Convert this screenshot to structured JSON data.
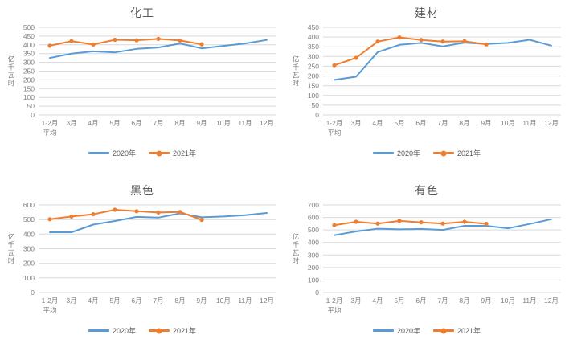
{
  "page": {
    "background": "#FFFFFF"
  },
  "colors": {
    "grid": "#D9D9D9",
    "axis_text": "#7F7F7F",
    "title_text": "#595959",
    "series_2020": "#5B9BD5",
    "series_2021": "#ED7D31"
  },
  "chart_data": [
    {
      "type": "line",
      "title": "化工",
      "ylabel": "亿千瓦时",
      "categories": [
        "1-2月\n平均",
        "3月",
        "4月",
        "5月",
        "6月",
        "7月",
        "8月",
        "9月",
        "10月",
        "11月",
        "12月"
      ],
      "ylim": [
        0,
        500
      ],
      "ytick_step": 50,
      "grid": true,
      "legend_position": "bottom",
      "series": [
        {
          "name": "2020年",
          "color": "#5B9BD5",
          "marker": false,
          "values": [
            325,
            350,
            363,
            357,
            377,
            385,
            408,
            380,
            394,
            408,
            428
          ]
        },
        {
          "name": "2021年",
          "color": "#ED7D31",
          "marker": true,
          "values": [
            395,
            421,
            402,
            429,
            426,
            434,
            425,
            403
          ]
        }
      ]
    },
    {
      "type": "line",
      "title": "建材",
      "ylabel": "亿千瓦时",
      "categories": [
        "1-2月\n平均",
        "3月",
        "4月",
        "5月",
        "6月",
        "7月",
        "8月",
        "9月",
        "10月",
        "11月",
        "12月"
      ],
      "ylim": [
        0,
        450
      ],
      "ytick_step": 50,
      "grid": true,
      "legend_position": "bottom",
      "series": [
        {
          "name": "2020年",
          "color": "#5B9BD5",
          "marker": false,
          "values": [
            180,
            196,
            323,
            360,
            370,
            352,
            371,
            364,
            370,
            386,
            356
          ]
        },
        {
          "name": "2021年",
          "color": "#ED7D31",
          "marker": true,
          "values": [
            255,
            293,
            377,
            398,
            385,
            377,
            378,
            362
          ]
        }
      ]
    },
    {
      "type": "line",
      "title": "黑色",
      "ylabel": "亿千瓦时",
      "categories": [
        "1-2月\n平均",
        "3月",
        "4月",
        "5月",
        "6月",
        "7月",
        "8月",
        "9月",
        "10月",
        "11月",
        "12月"
      ],
      "ylim": [
        0,
        600
      ],
      "ytick_step": 100,
      "grid": true,
      "legend_position": "bottom",
      "series": [
        {
          "name": "2020年",
          "color": "#5B9BD5",
          "marker": false,
          "values": [
            413,
            413,
            465,
            490,
            518,
            513,
            542,
            515,
            521,
            530,
            545
          ]
        },
        {
          "name": "2021年",
          "color": "#ED7D31",
          "marker": true,
          "values": [
            502,
            521,
            536,
            567,
            557,
            548,
            552,
            498
          ]
        }
      ]
    },
    {
      "type": "line",
      "title": "有色",
      "ylabel": "亿千瓦时",
      "categories": [
        "1-2月\n平均",
        "3月",
        "4月",
        "5月",
        "6月",
        "7月",
        "8月",
        "9月",
        "10月",
        "11月",
        "12月"
      ],
      "ylim": [
        0,
        700
      ],
      "ytick_step": 100,
      "grid": true,
      "legend_position": "bottom",
      "series": [
        {
          "name": "2020年",
          "color": "#5B9BD5",
          "marker": false,
          "values": [
            458,
            488,
            510,
            505,
            508,
            500,
            533,
            533,
            513,
            548,
            586
          ]
        },
        {
          "name": "2021年",
          "color": "#ED7D31",
          "marker": true,
          "values": [
            538,
            565,
            551,
            572,
            561,
            551,
            565,
            549
          ]
        }
      ]
    }
  ]
}
